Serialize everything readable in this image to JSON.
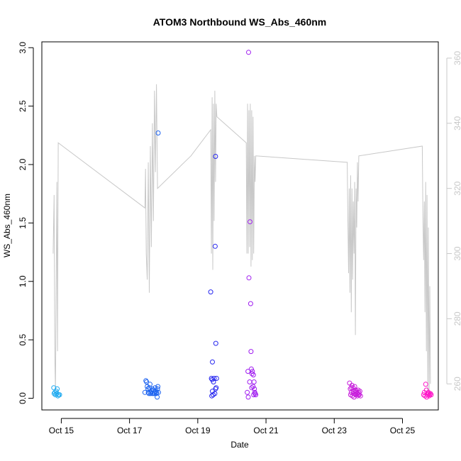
{
  "chart_data": {
    "type": "scatter",
    "title": "ATOM3 Northbound WS_Abs_460nm",
    "xlabel": "Date",
    "ylabel": "WS_Abs_460nm",
    "x_ticks": [
      {
        "day": 15,
        "label": "Oct 15"
      },
      {
        "day": 17,
        "label": "Oct 17"
      },
      {
        "day": 19,
        "label": "Oct 19"
      },
      {
        "day": 21,
        "label": "Oct 21"
      },
      {
        "day": 23,
        "label": "Oct 23"
      },
      {
        "day": 25,
        "label": "Oct 25"
      }
    ],
    "xlim_days": [
      14.43,
      26.05
    ],
    "ylim": [
      -0.1,
      3.05
    ],
    "y_ticks": [
      0.0,
      0.5,
      1.0,
      1.5,
      2.0,
      2.5,
      3.0
    ],
    "y_tick_labels": [
      "0.0",
      "0.5",
      "1.0",
      "1.5",
      "2.0",
      "2.5",
      "3.0"
    ],
    "y2_lim": [
      252,
      365
    ],
    "y2_ticks": [
      260,
      280,
      300,
      320,
      340,
      360
    ],
    "y2_tick_labels": [
      "260",
      "280",
      "300",
      "320",
      "340",
      "360"
    ],
    "colors": {
      "axis": "#000000",
      "secondary_line": "#c8c8c8",
      "right_axis": "#c8c8c8",
      "group_oct15": "#1eaaf0",
      "group_oct17": "#1e64f0",
      "group_oct19": "#2828f0",
      "group_oct20": "#a01ef0",
      "group_oct23": "#c81edc",
      "group_oct25": "#ff14c8"
    },
    "series": [
      {
        "color_key": "group_oct15",
        "points": [
          [
            14.78,
            0.09
          ],
          [
            14.81,
            0.05
          ],
          [
            14.83,
            0.03
          ],
          [
            14.85,
            0.06
          ],
          [
            14.87,
            0.04
          ],
          [
            14.88,
            0.08
          ],
          [
            14.9,
            0.02
          ],
          [
            14.92,
            0.03
          ],
          [
            14.95,
            0.03
          ],
          [
            14.79,
            0.04
          ]
        ]
      },
      {
        "color_key": "group_oct17",
        "points": [
          [
            17.45,
            0.05
          ],
          [
            17.48,
            0.15
          ],
          [
            17.5,
            0.14
          ],
          [
            17.52,
            0.1
          ],
          [
            17.54,
            0.08
          ],
          [
            17.55,
            0.05
          ],
          [
            17.57,
            0.04
          ],
          [
            17.58,
            0.09
          ],
          [
            17.6,
            0.12
          ],
          [
            17.62,
            0.04
          ],
          [
            17.63,
            0.05
          ],
          [
            17.65,
            0.06
          ],
          [
            17.67,
            0.08
          ],
          [
            17.68,
            0.04
          ],
          [
            17.7,
            0.07
          ],
          [
            17.72,
            0.04
          ],
          [
            17.73,
            0.05
          ],
          [
            17.75,
            0.09
          ],
          [
            17.77,
            0.06
          ],
          [
            17.78,
            0.04
          ],
          [
            17.8,
            0.05
          ],
          [
            17.82,
            0.08
          ],
          [
            17.83,
            0.1
          ],
          [
            17.85,
            0.05
          ],
          [
            17.81,
            0.01
          ],
          [
            17.84,
            2.27
          ]
        ]
      },
      {
        "color_key": "group_oct19",
        "points": [
          [
            19.38,
            0.91
          ],
          [
            19.4,
            0.17
          ],
          [
            19.42,
            0.16
          ],
          [
            19.43,
            0.06
          ],
          [
            19.45,
            0.03
          ],
          [
            19.46,
            0.14
          ],
          [
            19.48,
            0.17
          ],
          [
            19.5,
            0.04
          ],
          [
            19.52,
            0.08
          ],
          [
            19.53,
            0.47
          ],
          [
            19.54,
            0.09
          ],
          [
            19.55,
            0.17
          ],
          [
            19.51,
            1.3
          ],
          [
            19.52,
            2.07
          ],
          [
            19.43,
            0.31
          ],
          [
            19.41,
            0.02
          ]
        ]
      },
      {
        "color_key": "group_oct20",
        "points": [
          [
            20.45,
            0.05
          ],
          [
            20.47,
            0.23
          ],
          [
            20.48,
            0.01
          ],
          [
            20.5,
            1.03
          ],
          [
            20.52,
            0.14
          ],
          [
            20.53,
            1.51
          ],
          [
            20.55,
            0.81
          ],
          [
            20.56,
            0.4
          ],
          [
            20.57,
            0.25
          ],
          [
            20.58,
            0.09
          ],
          [
            20.59,
            0.21
          ],
          [
            20.6,
            0.23
          ],
          [
            20.62,
            0.1
          ],
          [
            20.63,
            0.2
          ],
          [
            20.64,
            0.03
          ],
          [
            20.65,
            0.14
          ],
          [
            20.66,
            0.08
          ],
          [
            20.67,
            0.05
          ],
          [
            20.68,
            0.04
          ],
          [
            20.7,
            0.03
          ],
          [
            20.49,
            2.96
          ]
        ]
      },
      {
        "color_key": "group_oct23",
        "points": [
          [
            23.45,
            0.13
          ],
          [
            23.47,
            0.08
          ],
          [
            23.48,
            0.03
          ],
          [
            23.5,
            0.05
          ],
          [
            23.52,
            0.11
          ],
          [
            23.53,
            0.02
          ],
          [
            23.55,
            0.09
          ],
          [
            23.57,
            0.06
          ],
          [
            23.58,
            0.01
          ],
          [
            23.6,
            0.1
          ],
          [
            23.62,
            0.07
          ],
          [
            23.63,
            0.03
          ],
          [
            23.65,
            0.06
          ],
          [
            23.67,
            0.04
          ],
          [
            23.68,
            0.02
          ],
          [
            23.7,
            0.07
          ],
          [
            23.72,
            0.05
          ],
          [
            23.73,
            0.03
          ],
          [
            23.75,
            0.06
          ],
          [
            23.77,
            0.02
          ],
          [
            23.5,
            0.09
          ],
          [
            23.56,
            0.04
          ],
          [
            23.64,
            0.05
          ],
          [
            23.71,
            0.03
          ]
        ]
      },
      {
        "color_key": "group_oct25",
        "points": [
          [
            25.62,
            0.03
          ],
          [
            25.64,
            0.05
          ],
          [
            25.66,
            0.02
          ],
          [
            25.68,
            0.12
          ],
          [
            25.7,
            0.07
          ],
          [
            25.72,
            0.03
          ],
          [
            25.74,
            0.04
          ],
          [
            25.76,
            0.05
          ],
          [
            25.78,
            0.02
          ],
          [
            25.8,
            0.03
          ],
          [
            25.82,
            0.04
          ],
          [
            25.84,
            0.03
          ],
          [
            25.71,
            0.01
          ],
          [
            25.77,
            0.04
          ]
        ]
      }
    ],
    "secondary_line": {
      "axis": "right",
      "points": [
        [
          14.76,
          300
        ],
        [
          14.79,
          318
        ],
        [
          14.81,
          268
        ],
        [
          14.83,
          258
        ],
        [
          14.85,
          290
        ],
        [
          14.87,
          322
        ],
        [
          14.89,
          270
        ],
        [
          14.91,
          334
        ],
        [
          17.45,
          314
        ],
        [
          17.47,
          326
        ],
        [
          17.49,
          300
        ],
        [
          17.52,
          292
        ],
        [
          17.55,
          328
        ],
        [
          17.58,
          288
        ],
        [
          17.61,
          333
        ],
        [
          17.64,
          302
        ],
        [
          17.67,
          340
        ],
        [
          17.7,
          310
        ],
        [
          17.73,
          350
        ],
        [
          17.76,
          325
        ],
        [
          17.79,
          352
        ],
        [
          17.82,
          320
        ],
        [
          18.8,
          330
        ],
        [
          19.38,
          338
        ],
        [
          19.4,
          300
        ],
        [
          19.42,
          348
        ],
        [
          19.44,
          295
        ],
        [
          19.46,
          346
        ],
        [
          19.48,
          310
        ],
        [
          19.5,
          350
        ],
        [
          19.52,
          322
        ],
        [
          19.54,
          346
        ],
        [
          19.56,
          342
        ],
        [
          20.42,
          334
        ],
        [
          20.44,
          300
        ],
        [
          20.46,
          346
        ],
        [
          20.48,
          300
        ],
        [
          20.5,
          344
        ],
        [
          20.52,
          302
        ],
        [
          20.54,
          346
        ],
        [
          20.56,
          296
        ],
        [
          20.58,
          344
        ],
        [
          20.6,
          298
        ],
        [
          20.62,
          342
        ],
        [
          20.64,
          300
        ],
        [
          20.66,
          330
        ],
        [
          20.68,
          322
        ],
        [
          20.7,
          330
        ],
        [
          23.38,
          328
        ],
        [
          23.4,
          310
        ],
        [
          23.42,
          294
        ],
        [
          23.44,
          320
        ],
        [
          23.46,
          288
        ],
        [
          23.48,
          324
        ],
        [
          23.5,
          282
        ],
        [
          23.52,
          320
        ],
        [
          23.54,
          292
        ],
        [
          23.56,
          316
        ],
        [
          23.58,
          300
        ],
        [
          23.6,
          322
        ],
        [
          23.62,
          275
        ],
        [
          23.64,
          320
        ],
        [
          23.66,
          308
        ],
        [
          23.68,
          328
        ],
        [
          23.7,
          316
        ],
        [
          23.72,
          330
        ],
        [
          25.58,
          333
        ],
        [
          25.6,
          310
        ],
        [
          25.62,
          298
        ],
        [
          25.64,
          316
        ],
        [
          25.66,
          282
        ],
        [
          25.68,
          322
        ],
        [
          25.7,
          270
        ],
        [
          25.72,
          318
        ],
        [
          25.74,
          258
        ],
        [
          25.76,
          308
        ],
        [
          25.78,
          256
        ],
        [
          25.8,
          290
        ],
        [
          25.82,
          260
        ]
      ]
    }
  }
}
